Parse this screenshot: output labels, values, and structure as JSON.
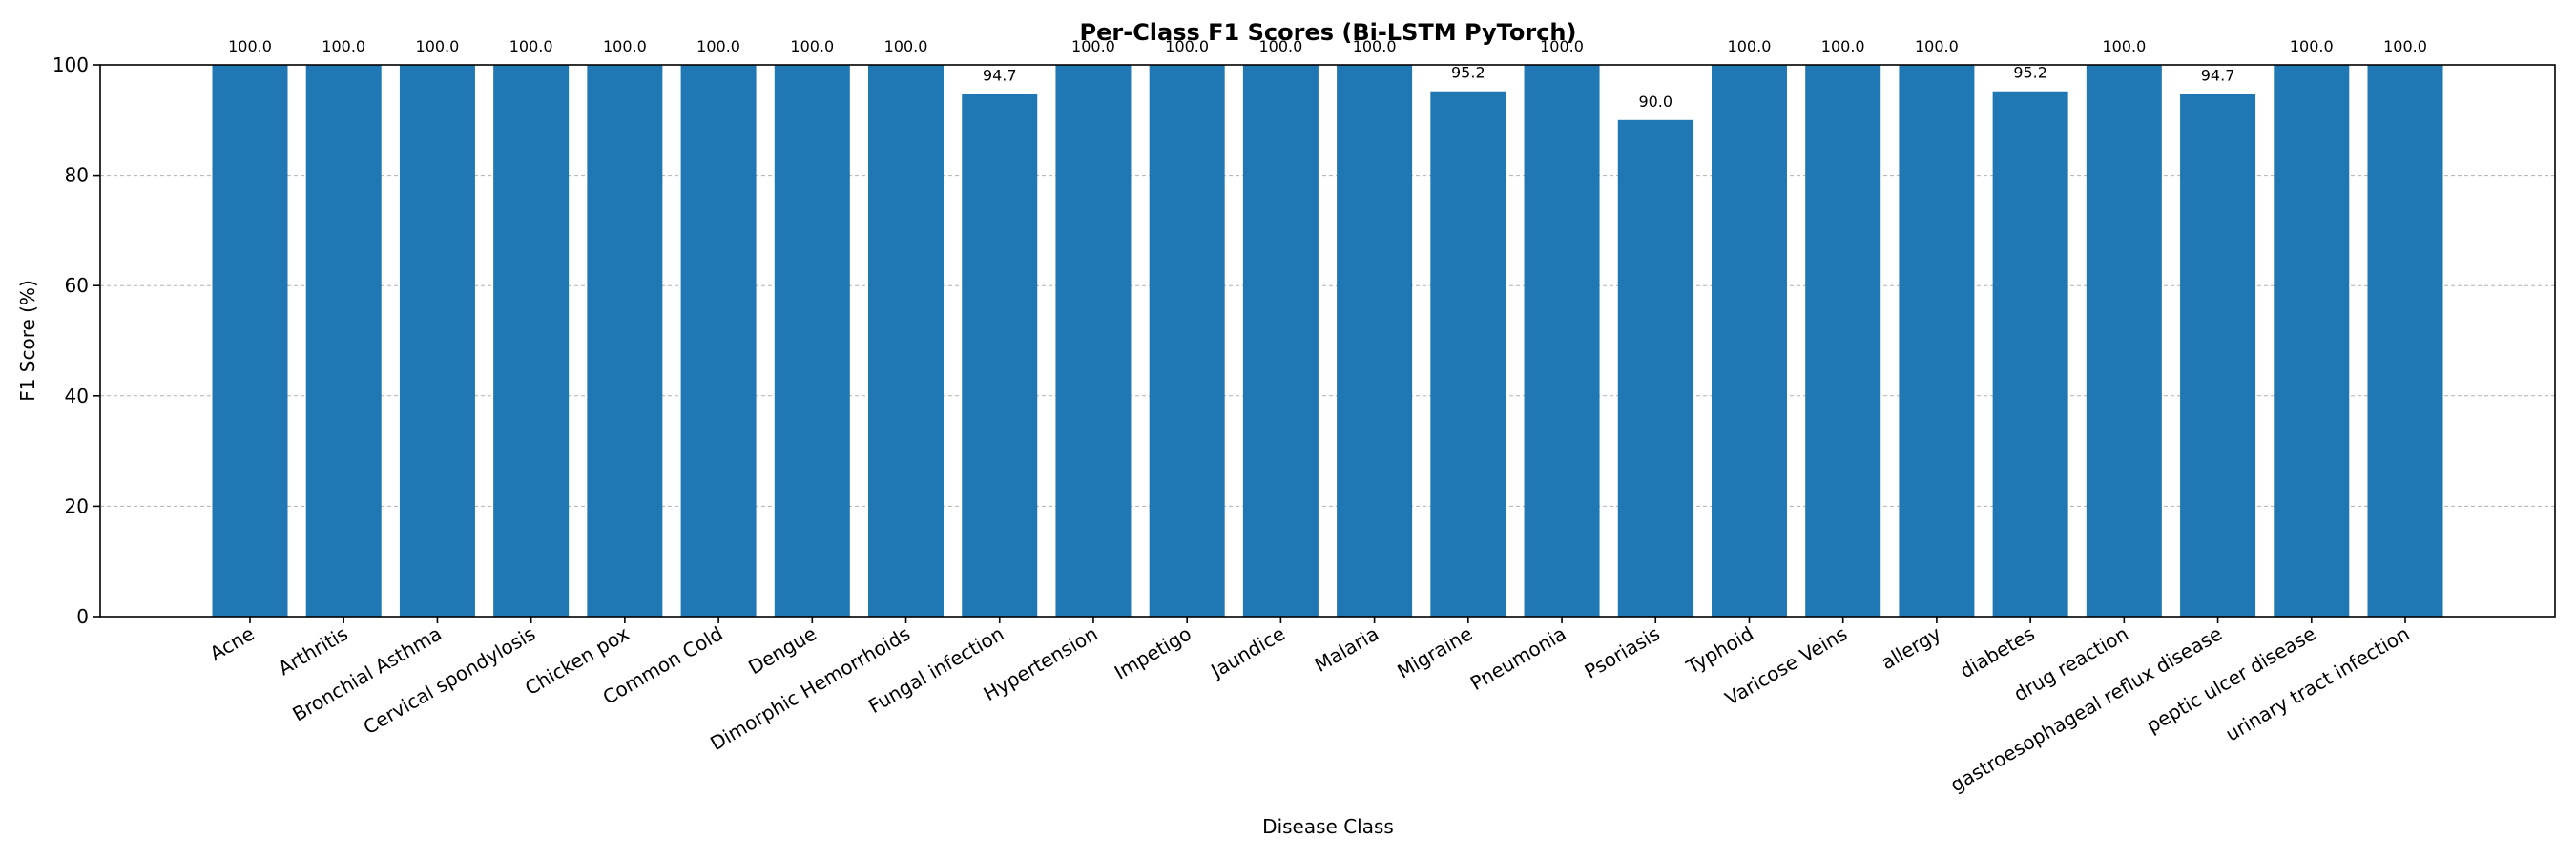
{
  "chart_data": {
    "type": "bar",
    "title": "Per-Class F1 Scores (Bi-LSTM PyTorch)",
    "xlabel": "Disease Class",
    "ylabel": "F1 Score (%)",
    "ylim": [
      0,
      100
    ],
    "yticks": [
      0,
      20,
      40,
      60,
      80,
      100
    ],
    "grid": "y-dashed",
    "bar_color": "#1f77b4",
    "categories": [
      "Acne",
      "Arthritis",
      "Bronchial Asthma",
      "Cervical spondylosis",
      "Chicken pox",
      "Common Cold",
      "Dengue",
      "Dimorphic Hemorrhoids",
      "Fungal infection",
      "Hypertension",
      "Impetigo",
      "Jaundice",
      "Malaria",
      "Migraine",
      "Pneumonia",
      "Psoriasis",
      "Typhoid",
      "Varicose Veins",
      "allergy",
      "diabetes",
      "drug reaction",
      "gastroesophageal reflux disease",
      "peptic ulcer disease",
      "urinary tract infection"
    ],
    "values": [
      100.0,
      100.0,
      100.0,
      100.0,
      100.0,
      100.0,
      100.0,
      100.0,
      94.7,
      100.0,
      100.0,
      100.0,
      100.0,
      95.2,
      100.0,
      90.0,
      100.0,
      100.0,
      100.0,
      95.2,
      100.0,
      94.7,
      100.0,
      100.0
    ]
  }
}
